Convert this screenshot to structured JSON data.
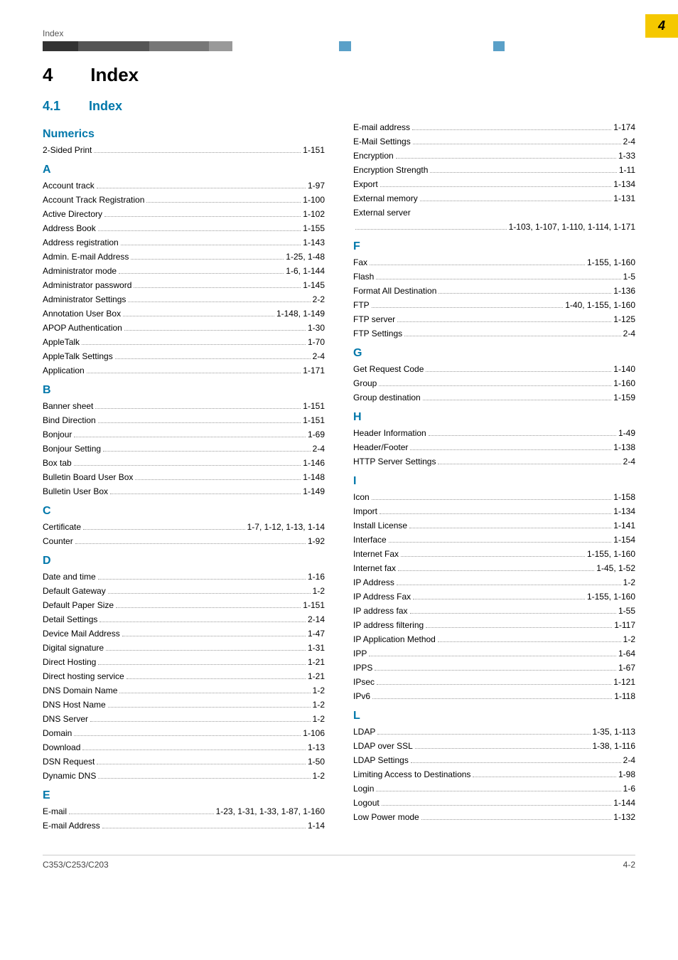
{
  "page_tab": "4",
  "header_text": "Index",
  "rule_segments": [
    {
      "w": "6%",
      "c": "#333333"
    },
    {
      "w": "12%",
      "c": "#555555"
    },
    {
      "w": "10%",
      "c": "#777777"
    },
    {
      "w": "4%",
      "c": "#999999"
    },
    {
      "w": "18%",
      "c": "#ffffff"
    },
    {
      "w": "2%",
      "c": "#5aa0c8"
    },
    {
      "w": "24%",
      "c": "#ffffff"
    },
    {
      "w": "2%",
      "c": "#5aa0c8"
    },
    {
      "w": "22%",
      "c": "#ffffff"
    }
  ],
  "chapter": {
    "num": "4",
    "title": "Index"
  },
  "section": {
    "num": "4.1",
    "title": "Index"
  },
  "left_groups": [
    {
      "letter": "Numerics",
      "items": [
        {
          "term": "2-Sided Print",
          "pages": "1-151"
        }
      ]
    },
    {
      "letter": "A",
      "items": [
        {
          "term": "Account track",
          "pages": "1-97"
        },
        {
          "term": "Account Track Registration",
          "pages": "1-100"
        },
        {
          "term": "Active Directory",
          "pages": "1-102"
        },
        {
          "term": "Address Book",
          "pages": "1-155"
        },
        {
          "term": "Address registration",
          "pages": "1-143"
        },
        {
          "term": "Admin. E-mail Address",
          "pages": "1-25, 1-48"
        },
        {
          "term": "Administrator mode",
          "pages": "1-6, 1-144"
        },
        {
          "term": "Administrator password",
          "pages": "1-145"
        },
        {
          "term": "Administrator Settings",
          "pages": "2-2"
        },
        {
          "term": "Annotation User Box",
          "pages": "1-148, 1-149"
        },
        {
          "term": "APOP Authentication",
          "pages": "1-30"
        },
        {
          "term": "AppleTalk",
          "pages": "1-70"
        },
        {
          "term": "AppleTalk Settings",
          "pages": "2-4"
        },
        {
          "term": "Application",
          "pages": "1-171"
        }
      ]
    },
    {
      "letter": "B",
      "items": [
        {
          "term": "Banner sheet",
          "pages": "1-151"
        },
        {
          "term": "Bind Direction",
          "pages": "1-151"
        },
        {
          "term": "Bonjour",
          "pages": "1-69"
        },
        {
          "term": "Bonjour Setting",
          "pages": "2-4"
        },
        {
          "term": "Box tab",
          "pages": "1-146"
        },
        {
          "term": "Bulletin Board User Box",
          "pages": "1-148"
        },
        {
          "term": "Bulletin User Box",
          "pages": "1-149"
        }
      ]
    },
    {
      "letter": "C",
      "items": [
        {
          "term": "Certificate",
          "pages": "1-7, 1-12, 1-13, 1-14"
        },
        {
          "term": "Counter",
          "pages": "1-92"
        }
      ]
    },
    {
      "letter": "D",
      "items": [
        {
          "term": "Date and time",
          "pages": "1-16"
        },
        {
          "term": "Default Gateway",
          "pages": "1-2"
        },
        {
          "term": "Default Paper Size",
          "pages": "1-151"
        },
        {
          "term": "Detail Settings",
          "pages": "2-14"
        },
        {
          "term": "Device Mail Address",
          "pages": "1-47"
        },
        {
          "term": "Digital signature",
          "pages": "1-31"
        },
        {
          "term": "Direct Hosting",
          "pages": "1-21"
        },
        {
          "term": "Direct hosting service",
          "pages": "1-21"
        },
        {
          "term": "DNS Domain Name",
          "pages": "1-2"
        },
        {
          "term": "DNS Host Name",
          "pages": "1-2"
        },
        {
          "term": "DNS Server",
          "pages": "1-2"
        },
        {
          "term": "Domain",
          "pages": "1-106"
        },
        {
          "term": "Download",
          "pages": "1-13"
        },
        {
          "term": "DSN Request",
          "pages": "1-50"
        },
        {
          "term": "Dynamic DNS",
          "pages": "1-2"
        }
      ]
    },
    {
      "letter": "E",
      "items": [
        {
          "term": "E-mail",
          "pages": "1-23, 1-31, 1-33, 1-87, 1-160"
        },
        {
          "term": "E-mail Address",
          "pages": "1-14"
        }
      ]
    }
  ],
  "right_groups": [
    {
      "letter": null,
      "items": [
        {
          "term": "E-mail address",
          "pages": "1-174"
        },
        {
          "term": "E-Mail Settings",
          "pages": "2-4"
        },
        {
          "term": "Encryption",
          "pages": "1-33"
        },
        {
          "term": "Encryption Strength",
          "pages": "1-11"
        },
        {
          "term": "Export",
          "pages": "1-134"
        },
        {
          "term": "External memory",
          "pages": "1-131"
        },
        {
          "term": "External server",
          "pages": null,
          "noline": true
        },
        {
          "term": "",
          "pages": "1-103, 1-107, 1-110, 1-114, 1-171"
        }
      ]
    },
    {
      "letter": "F",
      "items": [
        {
          "term": "Fax",
          "pages": "1-155, 1-160"
        },
        {
          "term": "Flash",
          "pages": "1-5"
        },
        {
          "term": "Format All Destination",
          "pages": "1-136"
        },
        {
          "term": "FTP",
          "pages": "1-40, 1-155, 1-160"
        },
        {
          "term": "FTP server",
          "pages": "1-125"
        },
        {
          "term": "FTP Settings",
          "pages": "2-4"
        }
      ]
    },
    {
      "letter": "G",
      "items": [
        {
          "term": "Get Request Code",
          "pages": "1-140"
        },
        {
          "term": "Group",
          "pages": "1-160"
        },
        {
          "term": "Group destination",
          "pages": "1-159"
        }
      ]
    },
    {
      "letter": "H",
      "items": [
        {
          "term": "Header Information",
          "pages": "1-49"
        },
        {
          "term": "Header/Footer",
          "pages": "1-138"
        },
        {
          "term": "HTTP Server Settings",
          "pages": "2-4"
        }
      ]
    },
    {
      "letter": "I",
      "items": [
        {
          "term": "Icon",
          "pages": "1-158"
        },
        {
          "term": "Import",
          "pages": "1-134"
        },
        {
          "term": "Install License",
          "pages": "1-141"
        },
        {
          "term": "Interface",
          "pages": "1-154"
        },
        {
          "term": "Internet Fax",
          "pages": "1-155, 1-160"
        },
        {
          "term": "Internet fax",
          "pages": "1-45, 1-52"
        },
        {
          "term": "IP Address",
          "pages": "1-2"
        },
        {
          "term": "IP Address Fax",
          "pages": "1-155, 1-160"
        },
        {
          "term": "IP address fax",
          "pages": "1-55"
        },
        {
          "term": "IP address filtering",
          "pages": "1-117"
        },
        {
          "term": "IP Application Method",
          "pages": "1-2"
        },
        {
          "term": "IPP",
          "pages": "1-64"
        },
        {
          "term": "IPPS",
          "pages": "1-67"
        },
        {
          "term": "IPsec",
          "pages": "1-121"
        },
        {
          "term": "IPv6",
          "pages": "1-118"
        }
      ]
    },
    {
      "letter": "L",
      "items": [
        {
          "term": "LDAP",
          "pages": "1-35, 1-113"
        },
        {
          "term": "LDAP over SSL",
          "pages": "1-38, 1-116"
        },
        {
          "term": "LDAP Settings",
          "pages": "2-4"
        },
        {
          "term": "Limiting Access to Destinations",
          "pages": "1-98"
        },
        {
          "term": "Login",
          "pages": "1-6"
        },
        {
          "term": "Logout",
          "pages": "1-144"
        },
        {
          "term": "Low Power mode",
          "pages": "1-132"
        }
      ]
    }
  ],
  "footer": {
    "left": "C353/C253/C203",
    "right": "4-2"
  }
}
